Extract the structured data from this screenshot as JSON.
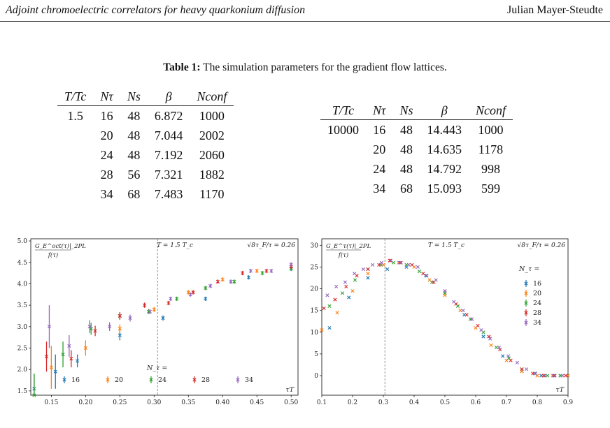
{
  "header": {
    "left": "Adjoint chromoelectric correlators for heavy quarkonium diffusion",
    "right": "Julian Mayer-Steudte"
  },
  "caption": {
    "label": "Table 1:",
    "text": " The simulation parameters for the gradient flow lattices."
  },
  "table1": {
    "headers": [
      "T/Tc",
      "Nτ",
      "Ns",
      "β",
      "Nconf"
    ],
    "rows": [
      [
        "1.5",
        "16",
        "48",
        "6.872",
        "1000"
      ],
      [
        "",
        "20",
        "48",
        "7.044",
        "2002"
      ],
      [
        "",
        "24",
        "48",
        "7.192",
        "2060"
      ],
      [
        "",
        "28",
        "56",
        "7.321",
        "1882"
      ],
      [
        "",
        "34",
        "68",
        "7.483",
        "1170"
      ]
    ]
  },
  "table2": {
    "headers": [
      "T/Tc",
      "Nτ",
      "Ns",
      "β",
      "Nconf"
    ],
    "rows": [
      [
        "10000",
        "16",
        "48",
        "14.443",
        "1000"
      ],
      [
        "",
        "20",
        "48",
        "14.635",
        "1178"
      ],
      [
        "",
        "24",
        "48",
        "14.792",
        "998"
      ],
      [
        "",
        "34",
        "68",
        "15.093",
        "599"
      ]
    ]
  },
  "chart_data": [
    {
      "type": "scatter",
      "ylabel_num": "G_E^oct(τ)|_2PL",
      "ylabel_den": "f(τ)",
      "xlabel": "τT",
      "annotation_T": "T = 1.5 T_c",
      "annotation_flow": "√8τ_F/τ = 0.26",
      "legend_title": "N_τ =",
      "legend_placement": "bottom",
      "xlim": [
        0.12,
        0.51
      ],
      "ylim": [
        1.4,
        5.05
      ],
      "xticks": [
        0.15,
        0.2,
        0.25,
        0.3,
        0.35,
        0.4,
        0.45,
        0.5
      ],
      "yticks": [
        1.5,
        2.0,
        2.5,
        3.0,
        3.5,
        4.0,
        4.5,
        5.0
      ],
      "xtick_labels": [
        "0.15",
        "0.20",
        "0.25",
        "0.30",
        "0.35",
        "0.40",
        "0.45",
        "0.50"
      ],
      "ytick_labels": [
        "1.5",
        "2.0",
        "2.5",
        "3.0",
        "3.5",
        "4.0",
        "4.5",
        "5.0"
      ],
      "vline_x": 0.305,
      "series": [
        {
          "name": "16",
          "color": "#1f77b4",
          "points": [
            [
              0.125,
              1.55,
              0.35
            ],
            [
              0.156,
              1.95,
              0.4
            ],
            [
              0.188,
              2.2,
              0.15
            ],
            [
              0.25,
              2.8,
              0.12
            ],
            [
              0.313,
              3.2,
              0.06
            ],
            [
              0.375,
              3.65,
              0.05
            ],
            [
              0.438,
              4.15,
              0.05
            ],
            [
              0.5,
              4.35,
              0.05
            ]
          ]
        },
        {
          "name": "20",
          "color": "#ff7f0e",
          "points": [
            [
              0.15,
              2.05,
              0.5
            ],
            [
              0.2,
              2.5,
              0.18
            ],
            [
              0.25,
              2.95,
              0.1
            ],
            [
              0.3,
              3.4,
              0.06
            ],
            [
              0.35,
              3.8,
              0.05
            ],
            [
              0.4,
              4.1,
              0.05
            ],
            [
              0.45,
              4.3,
              0.05
            ],
            [
              0.5,
              4.4,
              0.05
            ]
          ]
        },
        {
          "name": "24",
          "color": "#2ca02c",
          "points": [
            [
              0.125,
              1.4,
              0.5
            ],
            [
              0.167,
              2.35,
              0.3
            ],
            [
              0.208,
              2.95,
              0.14
            ],
            [
              0.25,
              3.25,
              0.09
            ],
            [
              0.292,
              3.35,
              0.06
            ],
            [
              0.333,
              3.65,
              0.05
            ],
            [
              0.375,
              3.9,
              0.05
            ],
            [
              0.417,
              4.05,
              0.05
            ],
            [
              0.458,
              4.25,
              0.05
            ],
            [
              0.5,
              4.35,
              0.05
            ]
          ]
        },
        {
          "name": "28",
          "color": "#d62728",
          "points": [
            [
              0.143,
              2.3,
              0.35
            ],
            [
              0.179,
              2.25,
              0.2
            ],
            [
              0.214,
              2.9,
              0.12
            ],
            [
              0.25,
              3.25,
              0.08
            ],
            [
              0.286,
              3.5,
              0.06
            ],
            [
              0.321,
              3.55,
              0.05
            ],
            [
              0.357,
              3.8,
              0.05
            ],
            [
              0.393,
              4.05,
              0.05
            ],
            [
              0.429,
              4.25,
              0.05
            ],
            [
              0.464,
              4.3,
              0.05
            ],
            [
              0.5,
              4.4,
              0.05
            ]
          ]
        },
        {
          "name": "34",
          "color": "#9467bd",
          "points": [
            [
              0.147,
              3.0,
              0.5
            ],
            [
              0.176,
              2.55,
              0.25
            ],
            [
              0.206,
              3.0,
              0.15
            ],
            [
              0.235,
              3.0,
              0.1
            ],
            [
              0.265,
              3.2,
              0.08
            ],
            [
              0.294,
              3.35,
              0.06
            ],
            [
              0.324,
              3.65,
              0.05
            ],
            [
              0.353,
              3.75,
              0.05
            ],
            [
              0.382,
              3.95,
              0.05
            ],
            [
              0.412,
              4.05,
              0.05
            ],
            [
              0.441,
              4.3,
              0.05
            ],
            [
              0.471,
              4.3,
              0.05
            ],
            [
              0.5,
              4.45,
              0.05
            ]
          ]
        }
      ]
    },
    {
      "type": "scatter",
      "ylabel_num": "G_E^τ(τ)|_2PL",
      "ylabel_den": "f(τ)",
      "xlabel": "τT",
      "annotation_T": "T = 1.5 T_c",
      "annotation_flow": "√8τ_F/τ = 0.26",
      "legend_title": "N_τ =",
      "legend_placement": "right",
      "xlim": [
        0.1,
        0.9
      ],
      "ylim": [
        -4.5,
        31.5
      ],
      "xticks": [
        0.1,
        0.2,
        0.3,
        0.4,
        0.5,
        0.6,
        0.7,
        0.8,
        0.9
      ],
      "yticks": [
        0,
        5,
        10,
        15,
        20,
        25,
        30
      ],
      "xtick_labels": [
        "0.1",
        "0.2",
        "0.3",
        "0.4",
        "0.5",
        "0.6",
        "0.7",
        "0.8",
        "0.9"
      ],
      "ytick_labels": [
        "0",
        "5",
        "10",
        "15",
        "20",
        "25",
        "30"
      ],
      "vline_x": 0.305,
      "series": [
        {
          "name": "16",
          "color": "#1f77b4",
          "points": [
            [
              0.125,
              11.0
            ],
            [
              0.188,
              18.0
            ],
            [
              0.25,
              22.5
            ],
            [
              0.313,
              24.5
            ],
            [
              0.375,
              25.0
            ],
            [
              0.438,
              23.0
            ],
            [
              0.5,
              19.0
            ],
            [
              0.563,
              14.0
            ],
            [
              0.625,
              9.0
            ],
            [
              0.688,
              4.5
            ],
            [
              0.75,
              1.0
            ],
            [
              0.813,
              0.0
            ],
            [
              0.875,
              0.0
            ]
          ]
        },
        {
          "name": "20",
          "color": "#ff7f0e",
          "points": [
            [
              0.1,
              10.5
            ],
            [
              0.15,
              14.5
            ],
            [
              0.2,
              19.5
            ],
            [
              0.25,
              23.5
            ],
            [
              0.3,
              25.5
            ],
            [
              0.35,
              26.0
            ],
            [
              0.4,
              25.0
            ],
            [
              0.45,
              22.0
            ],
            [
              0.5,
              18.5
            ],
            [
              0.55,
              15.0
            ],
            [
              0.6,
              11.0
            ],
            [
              0.65,
              7.0
            ],
            [
              0.7,
              3.5
            ],
            [
              0.75,
              1.0
            ],
            [
              0.8,
              0.0
            ],
            [
              0.85,
              0.0
            ],
            [
              0.9,
              0.0
            ]
          ]
        },
        {
          "name": "24",
          "color": "#2ca02c",
          "points": [
            [
              0.125,
              16.0
            ],
            [
              0.167,
              19.0
            ],
            [
              0.208,
              22.0
            ],
            [
              0.25,
              24.5
            ],
            [
              0.292,
              25.5
            ],
            [
              0.333,
              26.0
            ],
            [
              0.375,
              25.5
            ],
            [
              0.417,
              24.0
            ],
            [
              0.458,
              21.5
            ],
            [
              0.5,
              19.0
            ],
            [
              0.542,
              16.0
            ],
            [
              0.583,
              13.0
            ],
            [
              0.625,
              10.0
            ],
            [
              0.667,
              6.5
            ],
            [
              0.708,
              4.0
            ],
            [
              0.75,
              1.5
            ],
            [
              0.792,
              0.5
            ],
            [
              0.833,
              0.0
            ],
            [
              0.875,
              0.0
            ]
          ]
        },
        {
          "name": "28",
          "color": "#d62728",
          "points": [
            [
              0.107,
              15.5
            ],
            [
              0.143,
              17.5
            ],
            [
              0.179,
              20.5
            ],
            [
              0.214,
              23.0
            ],
            [
              0.25,
              24.5
            ],
            [
              0.286,
              25.5
            ],
            [
              0.321,
              26.5
            ],
            [
              0.357,
              26.0
            ],
            [
              0.393,
              25.5
            ],
            [
              0.429,
              23.5
            ],
            [
              0.464,
              21.5
            ],
            [
              0.5,
              19.5
            ],
            [
              0.536,
              16.5
            ],
            [
              0.571,
              14.0
            ],
            [
              0.607,
              11.5
            ],
            [
              0.643,
              9.0
            ],
            [
              0.679,
              6.0
            ],
            [
              0.714,
              3.5
            ],
            [
              0.75,
              1.5
            ],
            [
              0.786,
              0.5
            ],
            [
              0.821,
              0.0
            ],
            [
              0.857,
              0.0
            ],
            [
              0.893,
              0.0
            ]
          ]
        },
        {
          "name": "34",
          "color": "#9467bd",
          "points": [
            [
              0.118,
              18.5
            ],
            [
              0.147,
              20.5
            ],
            [
              0.176,
              21.5
            ],
            [
              0.206,
              23.5
            ],
            [
              0.235,
              24.5
            ],
            [
              0.265,
              25.5
            ],
            [
              0.294,
              26.0
            ],
            [
              0.324,
              26.5
            ],
            [
              0.353,
              26.0
            ],
            [
              0.382,
              25.5
            ],
            [
              0.412,
              25.0
            ],
            [
              0.441,
              23.0
            ],
            [
              0.471,
              22.0
            ],
            [
              0.5,
              19.5
            ],
            [
              0.529,
              17.0
            ],
            [
              0.559,
              15.0
            ],
            [
              0.588,
              13.0
            ],
            [
              0.618,
              10.5
            ],
            [
              0.647,
              8.5
            ],
            [
              0.676,
              6.5
            ],
            [
              0.706,
              4.5
            ],
            [
              0.735,
              3.0
            ],
            [
              0.765,
              1.5
            ],
            [
              0.794,
              0.5
            ],
            [
              0.824,
              0.0
            ],
            [
              0.853,
              0.0
            ],
            [
              0.882,
              0.0
            ]
          ]
        }
      ]
    }
  ]
}
